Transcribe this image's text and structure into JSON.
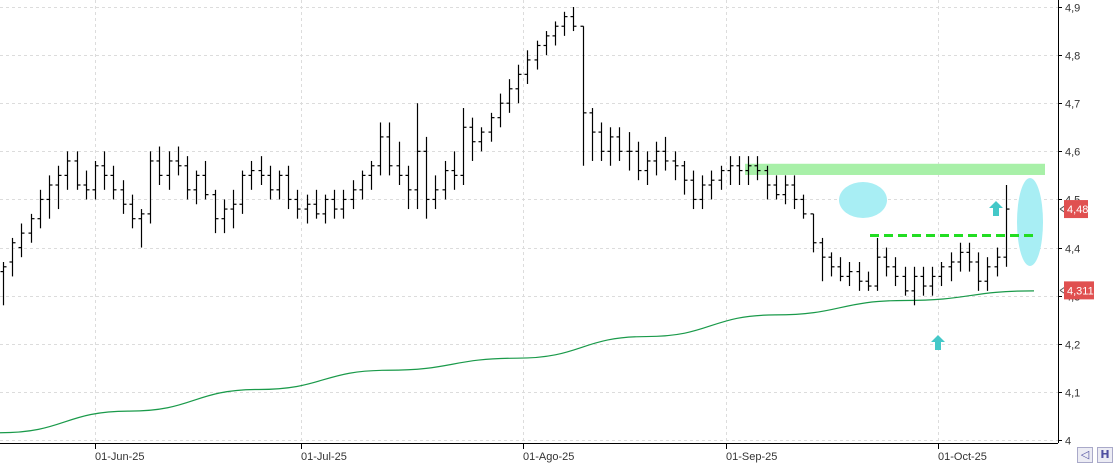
{
  "chart_data": {
    "type": "ohlc",
    "ylim": [
      4.0,
      4.9
    ],
    "yticks": [
      "4",
      "4,1",
      "4,2",
      "4,3",
      "4,4",
      "4,5",
      "4,6",
      "4,7",
      "4,8",
      "4,9"
    ],
    "yticks_values": [
      4.0,
      4.1,
      4.2,
      4.3,
      4.4,
      4.5,
      4.6,
      4.7,
      4.8,
      4.9
    ],
    "xticks": [
      "01-Jun-25",
      "01-Jul-25",
      "01-Ago-25",
      "01-Sep-25",
      "01-Oct-25"
    ],
    "grid": true,
    "last_price_label": "4,48",
    "moving_average_label": "4,311",
    "colors": {
      "bars": "#000000",
      "moving_average": "#1a9a4a",
      "badge": "#e05050",
      "resistance_zone": "#a8f0a8",
      "breakout_line": "#22dd22",
      "highlight": "#a8eef4",
      "arrow": "#44c8c8"
    },
    "moving_average": [
      4.015,
      4.06,
      4.105,
      4.145,
      4.17,
      4.215,
      4.26,
      4.29,
      4.31
    ],
    "ohlc": [
      [
        4.35,
        4.37,
        4.28,
        4.36
      ],
      [
        4.37,
        4.42,
        4.34,
        4.41
      ],
      [
        4.4,
        4.45,
        4.38,
        4.43
      ],
      [
        4.43,
        4.47,
        4.41,
        4.46
      ],
      [
        4.46,
        4.52,
        4.44,
        4.5
      ],
      [
        4.5,
        4.55,
        4.46,
        4.53
      ],
      [
        4.53,
        4.57,
        4.48,
        4.55
      ],
      [
        4.55,
        4.6,
        4.52,
        4.58
      ],
      [
        4.58,
        4.6,
        4.52,
        4.53
      ],
      [
        4.53,
        4.56,
        4.5,
        4.52
      ],
      [
        4.52,
        4.58,
        4.5,
        4.57
      ],
      [
        4.57,
        4.6,
        4.52,
        4.55
      ],
      [
        4.55,
        4.57,
        4.5,
        4.52
      ],
      [
        4.52,
        4.54,
        4.47,
        4.49
      ],
      [
        4.49,
        4.51,
        4.44,
        4.46
      ],
      [
        4.46,
        4.48,
        4.4,
        4.47
      ],
      [
        4.47,
        4.6,
        4.45,
        4.58
      ],
      [
        4.58,
        4.61,
        4.53,
        4.55
      ],
      [
        4.55,
        4.6,
        4.52,
        4.58
      ],
      [
        4.58,
        4.61,
        4.55,
        4.57
      ],
      [
        4.57,
        4.59,
        4.5,
        4.52
      ],
      [
        4.52,
        4.56,
        4.49,
        4.55
      ],
      [
        4.55,
        4.58,
        4.5,
        4.51
      ],
      [
        4.51,
        4.52,
        4.43,
        4.46
      ],
      [
        4.46,
        4.5,
        4.43,
        4.48
      ],
      [
        4.48,
        4.52,
        4.44,
        4.49
      ],
      [
        4.49,
        4.56,
        4.47,
        4.55
      ],
      [
        4.55,
        4.58,
        4.52,
        4.56
      ],
      [
        4.56,
        4.59,
        4.53,
        4.55
      ],
      [
        4.55,
        4.57,
        4.5,
        4.52
      ],
      [
        4.52,
        4.56,
        4.5,
        4.55
      ],
      [
        4.55,
        4.57,
        4.48,
        4.5
      ],
      [
        4.5,
        4.52,
        4.46,
        4.48
      ],
      [
        4.48,
        4.51,
        4.45,
        4.49
      ],
      [
        4.49,
        4.52,
        4.46,
        4.47
      ],
      [
        4.47,
        4.51,
        4.45,
        4.5
      ],
      [
        4.5,
        4.52,
        4.46,
        4.48
      ],
      [
        4.48,
        4.52,
        4.46,
        4.5
      ],
      [
        4.5,
        4.54,
        4.48,
        4.52
      ],
      [
        4.52,
        4.56,
        4.5,
        4.55
      ],
      [
        4.55,
        4.58,
        4.52,
        4.57
      ],
      [
        4.57,
        4.66,
        4.55,
        4.63
      ],
      [
        4.63,
        4.66,
        4.55,
        4.57
      ],
      [
        4.57,
        4.62,
        4.53,
        4.55
      ],
      [
        4.55,
        4.57,
        4.48,
        4.52
      ],
      [
        4.52,
        4.7,
        4.48,
        4.6
      ],
      [
        4.6,
        4.63,
        4.46,
        4.5
      ],
      [
        4.5,
        4.55,
        4.48,
        4.52
      ],
      [
        4.52,
        4.58,
        4.5,
        4.56
      ],
      [
        4.56,
        4.6,
        4.52,
        4.55
      ],
      [
        4.55,
        4.69,
        4.53,
        4.65
      ],
      [
        4.65,
        4.67,
        4.58,
        4.62
      ],
      [
        4.62,
        4.65,
        4.6,
        4.64
      ],
      [
        4.64,
        4.68,
        4.62,
        4.67
      ],
      [
        4.67,
        4.72,
        4.65,
        4.7
      ],
      [
        4.7,
        4.75,
        4.68,
        4.73
      ],
      [
        4.73,
        4.78,
        4.7,
        4.76
      ],
      [
        4.76,
        4.81,
        4.74,
        4.79
      ],
      [
        4.79,
        4.83,
        4.77,
        4.82
      ],
      [
        4.82,
        4.85,
        4.8,
        4.84
      ],
      [
        4.84,
        4.87,
        4.82,
        4.86
      ],
      [
        4.86,
        4.89,
        4.84,
        4.88
      ],
      [
        4.88,
        4.9,
        4.85,
        4.86
      ],
      [
        4.86,
        4.86,
        4.57,
        4.68
      ],
      [
        4.68,
        4.69,
        4.58,
        4.64
      ],
      [
        4.64,
        4.66,
        4.58,
        4.6
      ],
      [
        4.6,
        4.65,
        4.57,
        4.63
      ],
      [
        4.63,
        4.65,
        4.58,
        4.6
      ],
      [
        4.6,
        4.64,
        4.56,
        4.6
      ],
      [
        4.6,
        4.62,
        4.54,
        4.56
      ],
      [
        4.56,
        4.6,
        4.53,
        4.58
      ],
      [
        4.58,
        4.62,
        4.55,
        4.6
      ],
      [
        4.6,
        4.63,
        4.56,
        4.58
      ],
      [
        4.58,
        4.6,
        4.54,
        4.57
      ],
      [
        4.57,
        4.58,
        4.51,
        4.54
      ],
      [
        4.54,
        4.56,
        4.48,
        4.5
      ],
      [
        4.5,
        4.55,
        4.48,
        4.53
      ],
      [
        4.53,
        4.56,
        4.5,
        4.54
      ],
      [
        4.54,
        4.57,
        4.52,
        4.56
      ],
      [
        4.56,
        4.59,
        4.53,
        4.57
      ],
      [
        4.57,
        4.59,
        4.53,
        4.56
      ],
      [
        4.56,
        4.59,
        4.53,
        4.57
      ],
      [
        4.57,
        4.59,
        4.54,
        4.56
      ],
      [
        4.56,
        4.57,
        4.5,
        4.53
      ],
      [
        4.53,
        4.55,
        4.5,
        4.51
      ],
      [
        4.51,
        4.55,
        4.49,
        4.53
      ],
      [
        4.53,
        4.55,
        4.48,
        4.5
      ],
      [
        4.5,
        4.51,
        4.46,
        4.47
      ],
      [
        4.47,
        4.47,
        4.39,
        4.41
      ],
      [
        4.41,
        4.42,
        4.33,
        4.38
      ],
      [
        4.38,
        4.39,
        4.34,
        4.36
      ],
      [
        4.36,
        4.38,
        4.33,
        4.34
      ],
      [
        4.34,
        4.37,
        4.32,
        4.35
      ],
      [
        4.35,
        4.37,
        4.31,
        4.33
      ],
      [
        4.33,
        4.35,
        4.31,
        4.32
      ],
      [
        4.32,
        4.42,
        4.31,
        4.38
      ],
      [
        4.38,
        4.4,
        4.34,
        4.36
      ],
      [
        4.36,
        4.38,
        4.32,
        4.34
      ],
      [
        4.34,
        4.36,
        4.3,
        4.31
      ],
      [
        4.31,
        4.36,
        4.28,
        4.34
      ],
      [
        4.34,
        4.36,
        4.3,
        4.32
      ],
      [
        4.32,
        4.36,
        4.3,
        4.34
      ],
      [
        4.34,
        4.37,
        4.32,
        4.36
      ],
      [
        4.36,
        4.39,
        4.33,
        4.37
      ],
      [
        4.37,
        4.41,
        4.35,
        4.39
      ],
      [
        4.39,
        4.41,
        4.35,
        4.37
      ],
      [
        4.37,
        4.39,
        4.31,
        4.33
      ],
      [
        4.33,
        4.38,
        4.31,
        4.36
      ],
      [
        4.36,
        4.4,
        4.34,
        4.38
      ],
      [
        4.38,
        4.53,
        4.36,
        4.48
      ]
    ],
    "resistance_zone": [
      4.555,
      4.57
    ],
    "breakout_level": 4.425
  }
}
